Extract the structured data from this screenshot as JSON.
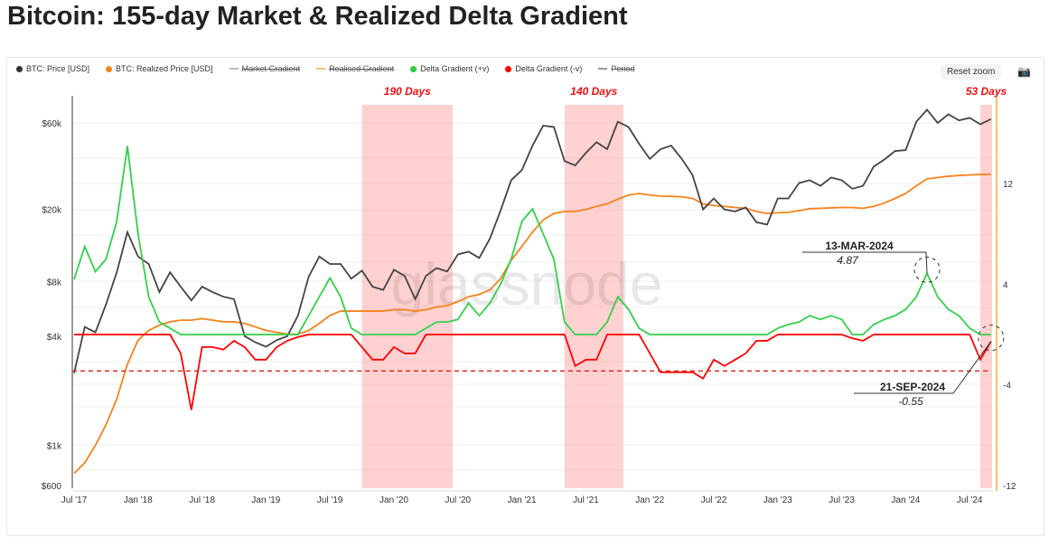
{
  "title": "Bitcoin: 155-day Market & Realized Delta Gradient",
  "legend": [
    {
      "label": "BTC: Price [USD]",
      "color": "#333333",
      "marker": "dot",
      "disabled": false
    },
    {
      "label": "BTC: Realized Price [USD]",
      "color": "#f7821b",
      "marker": "dot",
      "disabled": false
    },
    {
      "label": "Market Gradient",
      "color": "#bbbbbb",
      "marker": "line",
      "disabled": true
    },
    {
      "label": "Realised Gradient",
      "color": "#f5c26b",
      "marker": "line",
      "disabled": true
    },
    {
      "label": "Delta Gradient (+v)",
      "color": "#2ecc40",
      "marker": "dot",
      "disabled": false
    },
    {
      "label": "Delta Gradient (-v)",
      "color": "#ff0000",
      "marker": "dot",
      "disabled": false
    },
    {
      "label": "Period",
      "color": "#999999",
      "marker": "line",
      "disabled": true
    }
  ],
  "toolbar": {
    "reset_zoom": "Reset zoom",
    "camera_icon": "camera-icon"
  },
  "watermark": "glassnode",
  "chart_data": {
    "type": "line",
    "title": "Bitcoin: 155-day Market & Realized Delta Gradient",
    "x_start": "2017-07",
    "x_step": "1 month",
    "x_ticks": [
      "Jul '17",
      "Jan '18",
      "Jul '18",
      "Jan '19",
      "Jul '19",
      "Jan '20",
      "Jul '20",
      "Jan '21",
      "Jul '21",
      "Jan '22",
      "Jul '22",
      "Jan '23",
      "Jul '23",
      "Jan '24",
      "Jul '24"
    ],
    "y_left": {
      "scale": "log",
      "ticks": [
        "$600",
        "$1k",
        "$4k",
        "$8k",
        "$20k",
        "$60k"
      ],
      "tick_values": [
        600,
        1000,
        4000,
        8000,
        20000,
        60000
      ],
      "range": [
        600,
        80000
      ]
    },
    "y_right": {
      "scale": "linear",
      "ticks": [
        "12",
        "4",
        "-4",
        "-12"
      ],
      "tick_values": [
        12,
        4,
        -4,
        -12
      ],
      "range": [
        -12,
        18
      ]
    },
    "grid": true,
    "legend_position": "top-left",
    "series": [
      {
        "name": "BTC: Price [USD]",
        "axis": "left",
        "color": "#444444",
        "values": [
          2500,
          4500,
          4200,
          6000,
          9000,
          15000,
          11000,
          10000,
          7000,
          9000,
          7500,
          6300,
          7500,
          7000,
          6600,
          6400,
          4000,
          3700,
          3500,
          3800,
          4000,
          5200,
          8500,
          11000,
          10000,
          10000,
          8300,
          9200,
          7500,
          7200,
          9300,
          8600,
          6400,
          8600,
          9500,
          9100,
          11300,
          11700,
          10800,
          13800,
          19700,
          29000,
          33000,
          45000,
          58000,
          57000,
          37000,
          35000,
          41000,
          47000,
          43000,
          61000,
          57000,
          46000,
          38000,
          43000,
          45000,
          38000,
          31000,
          20000,
          23000,
          20000,
          19500,
          20500,
          17000,
          16500,
          23000,
          23000,
          28000,
          29000,
          27000,
          30000,
          29000,
          26000,
          27000,
          34500,
          37700,
          42000,
          42500,
          61000,
          71000,
          60000,
          67000,
          62000,
          64000,
          59000,
          63000
        ]
      },
      {
        "name": "BTC: Realized Price [USD]",
        "axis": "left",
        "color": "#f7821b",
        "values": [
          700,
          800,
          1000,
          1300,
          1800,
          2800,
          3800,
          4300,
          4600,
          4800,
          4900,
          4900,
          5000,
          4900,
          4800,
          4800,
          4700,
          4500,
          4300,
          4200,
          4100,
          4100,
          4300,
          4700,
          5200,
          5500,
          5500,
          5500,
          5500,
          5500,
          5600,
          5600,
          5500,
          5600,
          5800,
          5900,
          6200,
          6600,
          6800,
          7200,
          8300,
          10500,
          12500,
          15000,
          17500,
          19000,
          19500,
          19500,
          20000,
          20800,
          21500,
          22800,
          24000,
          24500,
          24000,
          23700,
          23600,
          23500,
          23000,
          21500,
          21000,
          20800,
          20500,
          20300,
          19500,
          19000,
          19200,
          19300,
          19700,
          20200,
          20300,
          20400,
          20500,
          20500,
          20300,
          20800,
          21700,
          23000,
          24500,
          27000,
          29500,
          30000,
          30500,
          30800,
          31000,
          31200,
          31300
        ]
      },
      {
        "name": "Delta Gradient",
        "axis": "right",
        "colors": {
          "positive": "#33d04a",
          "negative": "#ff0000"
        },
        "values": [
          4.4,
          7,
          5,
          6,
          9,
          15,
          8,
          3,
          1,
          0.5,
          -1.5,
          -6,
          -1,
          -1,
          -1.2,
          -0.5,
          -1,
          -2,
          -2,
          -1,
          -0.5,
          -0.2,
          1.5,
          3,
          4.5,
          3,
          0.5,
          -1,
          -2,
          -2,
          -1,
          -1.5,
          -1.5,
          0.5,
          1,
          1,
          1.2,
          2.5,
          1.5,
          2.5,
          4,
          6,
          9,
          10,
          8,
          6,
          1,
          -2.5,
          -2,
          -2,
          1,
          3,
          2,
          0.5,
          -1.5,
          -3,
          -3,
          -3,
          -3,
          -3.5,
          -2,
          -2.5,
          -2,
          -1.5,
          -0.5,
          -0.5,
          0.5,
          0.8,
          1,
          1.5,
          1.2,
          1.5,
          1.2,
          -0.3,
          -0.5,
          0.8,
          1.2,
          1.5,
          2,
          3,
          4.87,
          3,
          2,
          1.5,
          0.5,
          -2,
          -0.55
        ]
      }
    ],
    "threshold_line": {
      "value": -2.9,
      "style": "dashed",
      "color": "#e0201a"
    },
    "periods": [
      {
        "label": "190 Days",
        "start": "2019-10",
        "end": "2020-06"
      },
      {
        "label": "140 Days",
        "start": "2021-05",
        "end": "2021-10"
      },
      {
        "label": "53 Days",
        "start": "2024-08",
        "end": "2024-09"
      }
    ],
    "annotations": [
      {
        "date": "13-MAR-2024",
        "value": "4.87"
      },
      {
        "date": "21-SEP-2024",
        "value": "-0.55"
      }
    ]
  }
}
